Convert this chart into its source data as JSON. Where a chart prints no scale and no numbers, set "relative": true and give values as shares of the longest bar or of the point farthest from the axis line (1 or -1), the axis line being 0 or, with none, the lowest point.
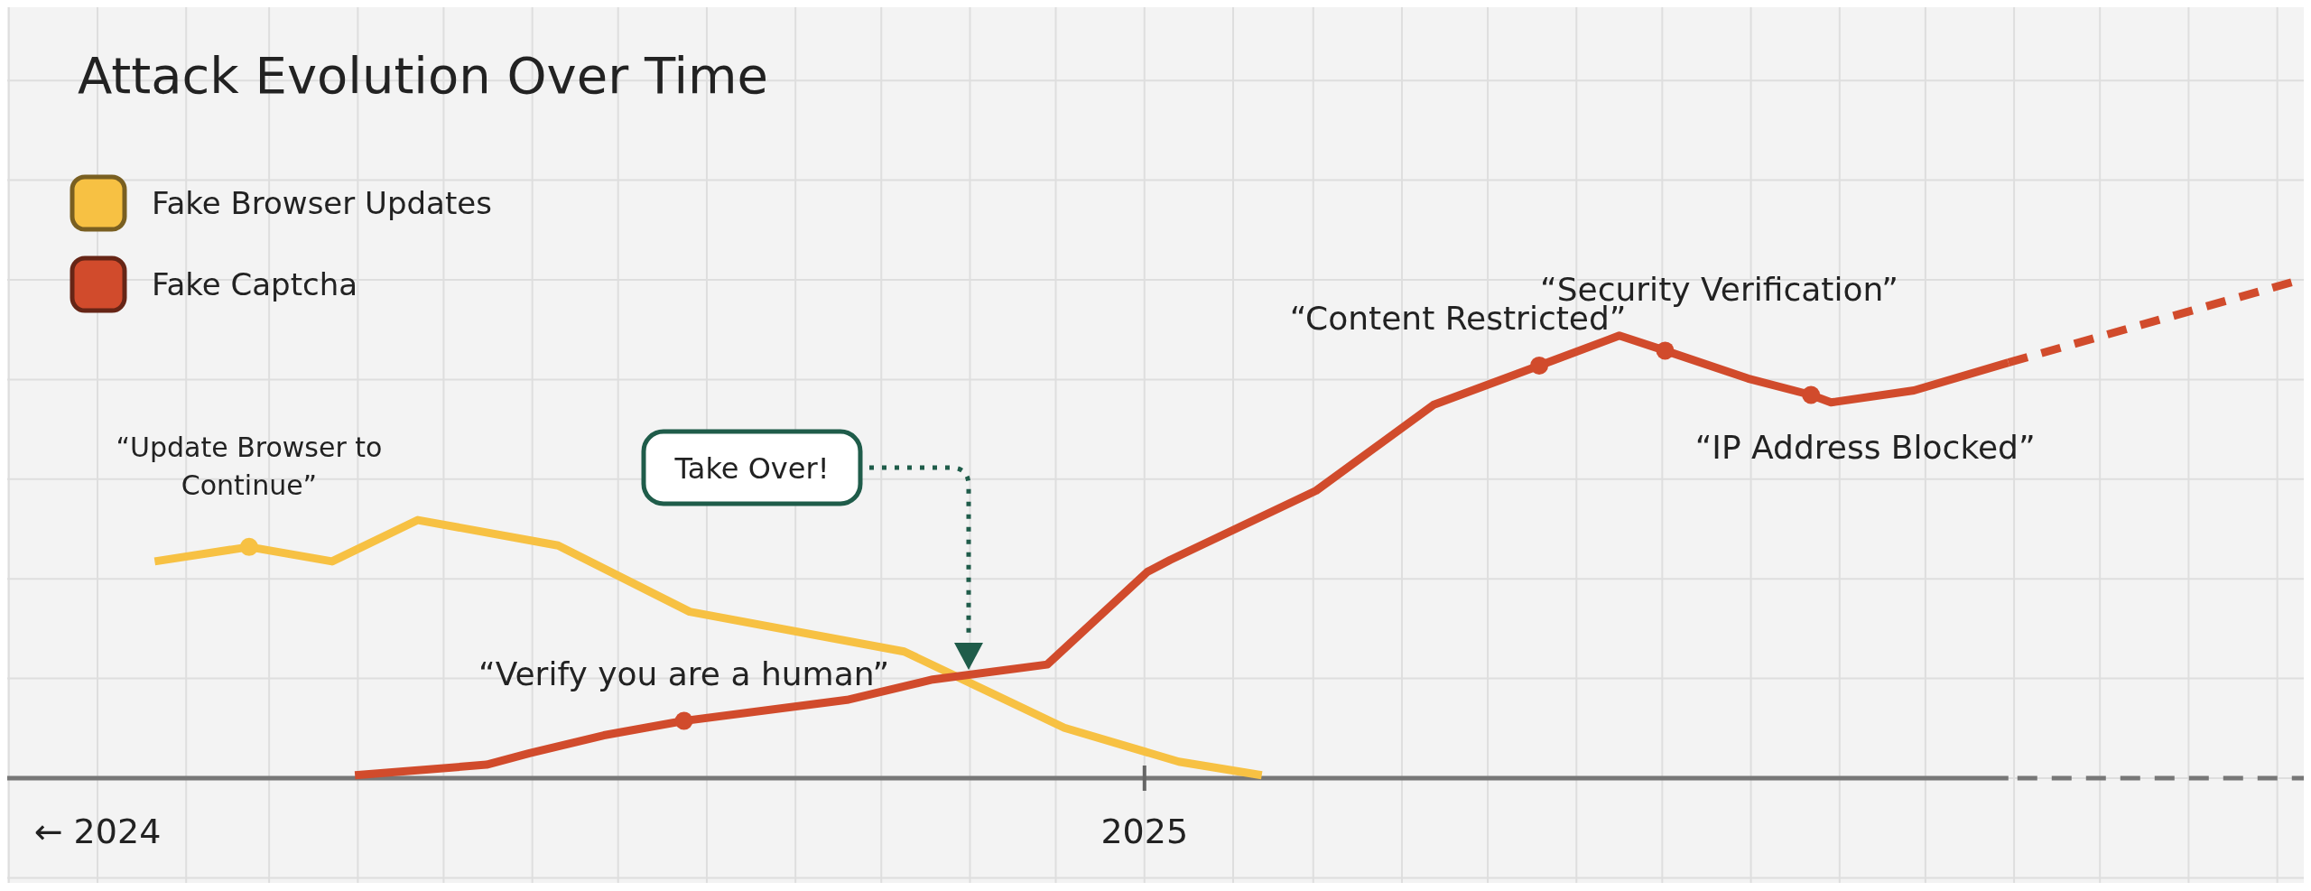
{
  "chart_data": {
    "type": "line",
    "title": "Attack Evolution Over Time",
    "relative": true,
    "grid": true,
    "legend": "top left",
    "marker": "none",
    "xlim": [
      "2024-01-01",
      "2026-02-09"
    ],
    "xticks": [
      {
        "value": "2024-01-01",
        "label": "← 2024"
      },
      {
        "value": "2025-01-01",
        "label": "2025"
      }
    ],
    "series": [
      {
        "name": "Fake Browser Updates",
        "color": "#f7c143",
        "x": [
          "2024-01-21",
          "2024-02-23",
          "2024-03-23",
          "2024-04-22",
          "2024-06-10",
          "2024-07-26",
          "2024-10-09",
          "2024-12-04",
          "2025-01-13",
          "2025-02-11"
        ],
        "values": [
          0.435,
          0.464,
          0.435,
          0.518,
          0.467,
          0.334,
          0.254,
          0.101,
          0.033,
          0.006
        ]
      },
      {
        "name": "Fake Captcha",
        "color": "#d14b2c",
        "x": [
          "2024-03-31",
          "2024-05-16",
          "2024-05-31",
          "2024-06-26",
          "2024-07-24",
          "2024-09-19",
          "2024-10-19",
          "2024-11-28",
          "2025-01-02",
          "2025-01-10",
          "2025-03-02",
          "2025-04-12",
          "2025-05-19",
          "2025-06-16",
          "2025-07-02",
          "2025-07-31",
          "2025-08-22",
          "2025-08-29",
          "2025-09-27",
          "2025-10-30"
        ],
        "values": [
          0.006,
          0.027,
          0.05,
          0.086,
          0.115,
          0.157,
          0.198,
          0.228,
          0.414,
          0.438,
          0.577,
          0.749,
          0.828,
          0.888,
          0.858,
          0.802,
          0.769,
          0.754,
          0.778,
          0.834
        ]
      },
      {
        "color": "#d14b2c",
        "line_style": "dashed",
        "x": [
          "2025-10-30",
          "2026-02-09"
        ],
        "values": [
          0.834,
          1
        ]
      }
    ],
    "annotations": [
      {
        "text": "“Update Browser to Continue”",
        "x": "2024-02-23",
        "y": 0.464
      },
      {
        "text": "“Verify you are a human”",
        "x": "2024-07-24",
        "y": 0.115
      },
      "Take Over!",
      {
        "text": "“Content Restricted”",
        "x": "2025-05-19",
        "y": 0.828
      },
      {
        "text": "“Security Verification”",
        "x": "2025-07-02",
        "y": 0.858
      },
      {
        "text": "“IP Address Blocked”",
        "x": "2025-08-22",
        "y": 0.769
      }
    ]
  }
}
